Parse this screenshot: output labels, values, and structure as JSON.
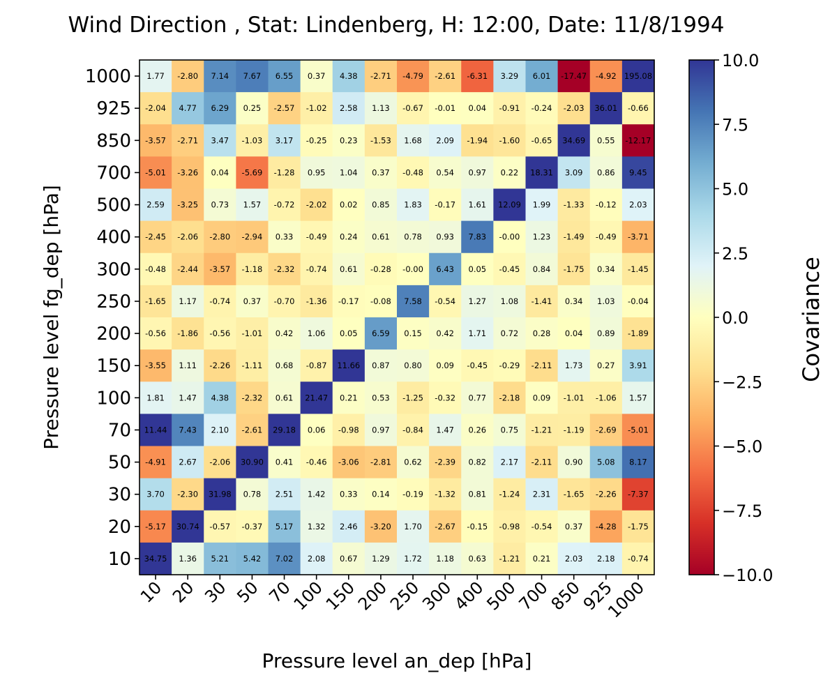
{
  "chart_data": {
    "type": "heatmap",
    "title": "Wind Direction , Stat: Lindenberg, H: 12:00, Date: 11/8/1994",
    "xlabel": "Pressure level an_dep [hPa]",
    "ylabel": "Pressure level fg_dep [hPa]",
    "x_categories": [
      "10",
      "20",
      "30",
      "50",
      "70",
      "100",
      "150",
      "200",
      "250",
      "300",
      "400",
      "500",
      "700",
      "850",
      "925",
      "1000"
    ],
    "y_categories_top_to_bottom": [
      "1000",
      "925",
      "850",
      "700",
      "500",
      "400",
      "300",
      "250",
      "200",
      "150",
      "100",
      "70",
      "50",
      "30",
      "20",
      "10"
    ],
    "values": [
      [
        "1.77",
        "-2.80",
        "7.14",
        "7.67",
        "6.55",
        "0.37",
        "4.38",
        "-2.71",
        "-4.79",
        "-2.61",
        "-6.31",
        "3.29",
        "6.01",
        "-17.47",
        "-4.92",
        "195.08"
      ],
      [
        "-2.04",
        "4.77",
        "6.29",
        "0.25",
        "-2.57",
        "-1.02",
        "2.58",
        "1.13",
        "-0.67",
        "-0.01",
        "0.04",
        "-0.91",
        "-0.24",
        "-2.03",
        "36.01",
        "-0.66"
      ],
      [
        "-3.57",
        "-2.71",
        "3.47",
        "-1.03",
        "3.17",
        "-0.25",
        "0.23",
        "-1.53",
        "1.68",
        "2.09",
        "-1.94",
        "-1.60",
        "-0.65",
        "34.69",
        "0.55",
        "-12.17"
      ],
      [
        "-5.01",
        "-3.26",
        "0.04",
        "-5.69",
        "-1.28",
        "0.95",
        "1.04",
        "0.37",
        "-0.48",
        "0.54",
        "0.97",
        "0.22",
        "18.31",
        "3.09",
        "0.86",
        "9.45"
      ],
      [
        "2.59",
        "-3.25",
        "0.73",
        "1.57",
        "-0.72",
        "-2.02",
        "0.02",
        "0.85",
        "1.83",
        "-0.17",
        "1.61",
        "12.09",
        "1.99",
        "-1.33",
        "-0.12",
        "2.03"
      ],
      [
        "-2.45",
        "-2.06",
        "-2.80",
        "-2.94",
        "0.33",
        "-0.49",
        "0.24",
        "0.61",
        "0.78",
        "0.93",
        "7.83",
        "-0.00",
        "1.23",
        "-1.49",
        "-0.49",
        "-3.71"
      ],
      [
        "-0.48",
        "-2.44",
        "-3.57",
        "-1.18",
        "-2.32",
        "-0.74",
        "0.61",
        "-0.28",
        "-0.00",
        "6.43",
        "0.05",
        "-0.45",
        "0.84",
        "-1.75",
        "0.34",
        "-1.45"
      ],
      [
        "-1.65",
        "1.17",
        "-0.74",
        "0.37",
        "-0.70",
        "-1.36",
        "-0.17",
        "-0.08",
        "7.58",
        "-0.54",
        "1.27",
        "1.08",
        "-1.41",
        "0.34",
        "1.03",
        "-0.04"
      ],
      [
        "-0.56",
        "-1.86",
        "-0.56",
        "-1.01",
        "0.42",
        "1.06",
        "0.05",
        "6.59",
        "0.15",
        "0.42",
        "1.71",
        "0.72",
        "0.28",
        "0.04",
        "0.89",
        "-1.89"
      ],
      [
        "-3.55",
        "1.11",
        "-2.26",
        "-1.11",
        "0.68",
        "-0.87",
        "11.66",
        "0.87",
        "0.80",
        "0.09",
        "-0.45",
        "-0.29",
        "-2.11",
        "1.73",
        "0.27",
        "3.91"
      ],
      [
        "1.81",
        "1.47",
        "4.38",
        "-2.32",
        "0.61",
        "21.47",
        "0.21",
        "0.53",
        "-1.25",
        "-0.32",
        "0.77",
        "-2.18",
        "0.09",
        "-1.01",
        "-1.06",
        "1.57"
      ],
      [
        "11.44",
        "7.43",
        "2.10",
        "-2.61",
        "29.18",
        "0.06",
        "-0.98",
        "0.97",
        "-0.84",
        "1.47",
        "0.26",
        "0.75",
        "-1.21",
        "-1.19",
        "-2.69",
        "-5.01"
      ],
      [
        "-4.91",
        "2.67",
        "-2.06",
        "30.90",
        "0.41",
        "-0.46",
        "-3.06",
        "-2.81",
        "0.62",
        "-2.39",
        "0.82",
        "2.17",
        "-2.11",
        "0.90",
        "5.08",
        "8.17"
      ],
      [
        "3.70",
        "-2.30",
        "31.98",
        "0.78",
        "2.51",
        "1.42",
        "0.33",
        "0.14",
        "-0.19",
        "-1.32",
        "0.81",
        "-1.24",
        "2.31",
        "-1.65",
        "-2.26",
        "-7.37"
      ],
      [
        "-5.17",
        "30.74",
        "-0.57",
        "-0.37",
        "5.17",
        "1.32",
        "2.46",
        "-3.20",
        "1.70",
        "-2.67",
        "-0.15",
        "-0.98",
        "-0.54",
        "0.37",
        "-4.28",
        "-1.75"
      ],
      [
        "34.75",
        "1.36",
        "5.21",
        "5.42",
        "7.02",
        "2.08",
        "0.67",
        "1.29",
        "1.72",
        "1.18",
        "0.63",
        "-1.21",
        "0.21",
        "2.03",
        "2.18",
        "-0.74"
      ]
    ],
    "colorbar": {
      "label": "Covariance",
      "range": [
        -10,
        10
      ],
      "ticks": [
        "10.0",
        "7.5",
        "5.0",
        "2.5",
        "0.0",
        "−2.5",
        "−5.0",
        "−7.5",
        "−10.0"
      ],
      "tick_values": [
        10,
        7.5,
        5,
        2.5,
        0,
        -2.5,
        -5,
        -7.5,
        -10
      ],
      "colormap": "RdYlBu"
    }
  }
}
